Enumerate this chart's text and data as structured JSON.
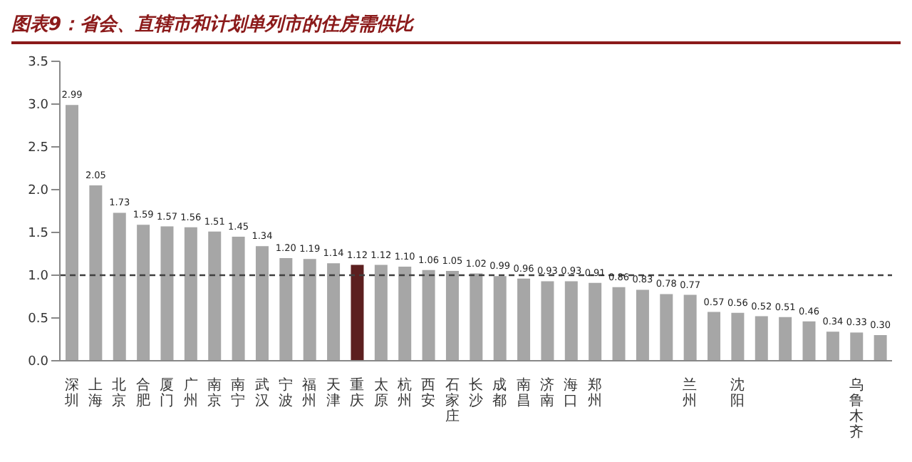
{
  "chart_data": {
    "type": "bar",
    "title": "图表9：省会、直辖市和计划单列市的住房需供比",
    "categories": [
      "深圳",
      "上海",
      "北京",
      "合肥",
      "厦门",
      "广州",
      "南京",
      "南宁",
      "武汉",
      "宁波",
      "福州",
      "天津",
      "重庆",
      "太原",
      "杭州",
      "西安",
      "石家庄",
      "长沙",
      "成都",
      "南昌",
      "济南",
      "海口",
      "郑州",
      null,
      null,
      null,
      "兰州",
      null,
      "沈阳",
      null,
      null,
      null,
      null,
      "乌鲁木齐",
      null
    ],
    "values": [
      2.99,
      2.05,
      1.73,
      1.59,
      1.57,
      1.56,
      1.51,
      1.45,
      1.34,
      1.2,
      1.19,
      1.14,
      1.12,
      1.12,
      1.1,
      1.06,
      1.05,
      1.02,
      0.99,
      0.96,
      0.93,
      0.93,
      0.91,
      0.86,
      0.83,
      0.78,
      0.77,
      0.57,
      0.56,
      0.52,
      0.51,
      0.46,
      0.34,
      0.33,
      0.3
    ],
    "colors": [
      "#a6a6a6",
      "#a6a6a6",
      "#a6a6a6",
      "#a6a6a6",
      "#a6a6a6",
      "#a6a6a6",
      "#a6a6a6",
      "#a6a6a6",
      "#a6a6a6",
      "#a6a6a6",
      "#a6a6a6",
      "#a6a6a6",
      "#5c1f1f",
      "#a6a6a6",
      "#a6a6a6",
      "#a6a6a6",
      "#a6a6a6",
      "#a6a6a6",
      "#a6a6a6",
      "#a6a6a6",
      "#a6a6a6",
      "#a6a6a6",
      "#a6a6a6",
      "#a6a6a6",
      "#a6a6a6",
      "#a6a6a6",
      "#a6a6a6",
      "#a6a6a6",
      "#a6a6a6",
      "#a6a6a6",
      "#a6a6a6",
      "#a6a6a6",
      "#a6a6a6",
      "#a6a6a6",
      "#a6a6a6"
    ],
    "ylim": [
      0,
      3.5
    ],
    "yticks": [
      {
        "value": 0,
        "label": "0.0"
      },
      {
        "value": 0.5,
        "label": "0.5"
      },
      {
        "value": 1,
        "label": "1.0"
      },
      {
        "value": 1.5,
        "label": "1.5"
      },
      {
        "value": 2,
        "label": "2.0"
      },
      {
        "value": 2.5,
        "label": "2.5"
      },
      {
        "value": 3,
        "label": "3.0"
      },
      {
        "value": 3.5,
        "label": "3.5"
      }
    ],
    "ref_lines": [
      {
        "axis": "y",
        "value": 1,
        "label": null,
        "color": "#404040",
        "line_style": "dashed"
      }
    ],
    "value_labels": [
      "2.99",
      "2.05",
      "1.73",
      "1.59",
      "1.57",
      "1.56",
      "1.51",
      "1.45",
      "1.34",
      "1.20",
      "1.19",
      "1.14",
      "1.12",
      "1.12",
      "1.10",
      "1.06",
      "1.05",
      "1.02",
      "0.99",
      "0.96",
      "0.93",
      "0.93",
      "0.91",
      "0.86",
      "0.83",
      "0.78",
      "0.77",
      "0.57",
      "0.56",
      "0.52",
      "0.51",
      "0.46",
      "0.34",
      "0.33",
      "0.30"
    ],
    "grid": false,
    "legend": false
  }
}
